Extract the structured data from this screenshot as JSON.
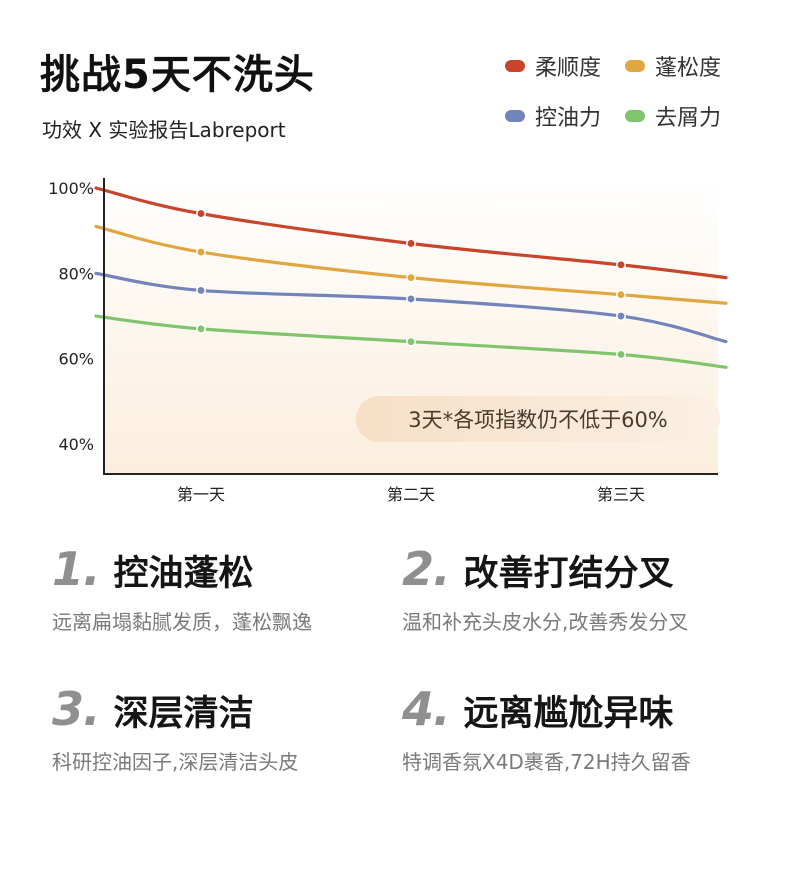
{
  "header": {
    "title": "挑战5天不洗头",
    "subtitle": "功效 X 实验报告Labreport"
  },
  "legend": [
    {
      "label": "柔顺度",
      "color": "#c8452c"
    },
    {
      "label": "蓬松度",
      "color": "#e0a640"
    },
    {
      "label": "控油力",
      "color": "#7384bb"
    },
    {
      "label": "去屑力",
      "color": "#80c46e"
    }
  ],
  "chart_data": {
    "type": "line",
    "categories": [
      "第一天",
      "第二天",
      "第三天"
    ],
    "yticks": [
      "100%",
      "80%",
      "60%",
      "40%"
    ],
    "ylim": [
      33,
      100
    ],
    "grid": false,
    "legend_position": "top-right",
    "annotation": "3天*各项指数仍不低于60%",
    "series": [
      {
        "name": "柔顺度",
        "color": "#c8452c",
        "x": [
          0.5,
          1,
          2,
          3,
          3.5
        ],
        "values": [
          100,
          94,
          87,
          82,
          79
        ]
      },
      {
        "name": "蓬松度",
        "color": "#e0a640",
        "x": [
          0.5,
          1,
          2,
          3,
          3.5
        ],
        "values": [
          91,
          85,
          79,
          75,
          73
        ]
      },
      {
        "name": "控油力",
        "color": "#7384bb",
        "x": [
          0.5,
          1,
          2,
          3,
          3.5
        ],
        "values": [
          80,
          76,
          74,
          70,
          64
        ]
      },
      {
        "name": "去屑力",
        "color": "#80c46e",
        "x": [
          0.5,
          1,
          2,
          3,
          3.5
        ],
        "values": [
          70,
          67,
          64,
          61,
          58
        ]
      }
    ]
  },
  "features": [
    {
      "num": "1.",
      "title": "控油蓬松",
      "desc": "远离扁塌黏腻发质，蓬松飘逸"
    },
    {
      "num": "2.",
      "title": "改善打结分叉",
      "desc": "温和补充头皮水分,改善秀发分叉"
    },
    {
      "num": "3.",
      "title": "深层清洁",
      "desc": "科研控油因子,深层清洁头皮"
    },
    {
      "num": "4.",
      "title": "远离尴尬异味",
      "desc": "特调香氛X4D裹香,72H持久留香"
    }
  ]
}
